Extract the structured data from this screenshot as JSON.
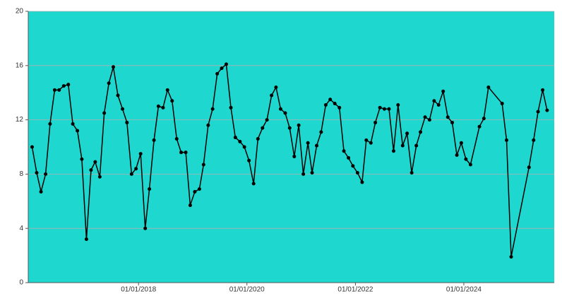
{
  "chart_data": {
    "type": "line",
    "x": [
      "2016-01-15",
      "2016-02-15",
      "2016-03-15",
      "2016-04-15",
      "2016-05-15",
      "2016-06-15",
      "2016-07-15",
      "2016-08-15",
      "2016-09-15",
      "2016-10-15",
      "2016-11-15",
      "2016-12-15",
      "2017-01-15",
      "2017-02-15",
      "2017-03-15",
      "2017-04-15",
      "2017-05-15",
      "2017-06-15",
      "2017-07-15",
      "2017-08-15",
      "2017-09-15",
      "2017-10-15",
      "2017-11-15",
      "2017-12-15",
      "2018-01-15",
      "2018-02-15",
      "2018-03-15",
      "2018-04-15",
      "2018-05-15",
      "2018-06-15",
      "2018-07-15",
      "2018-08-15",
      "2018-09-15",
      "2018-10-15",
      "2018-11-15",
      "2018-12-15",
      "2019-01-15",
      "2019-02-15",
      "2019-03-15",
      "2019-04-15",
      "2019-05-15",
      "2019-06-15",
      "2019-07-15",
      "2019-08-15",
      "2019-09-15",
      "2019-10-15",
      "2019-11-15",
      "2019-12-15",
      "2020-01-15",
      "2020-02-15",
      "2020-03-15",
      "2020-04-15",
      "2020-05-15",
      "2020-06-15",
      "2020-07-15",
      "2020-08-15",
      "2020-09-15",
      "2020-10-15",
      "2020-11-15",
      "2020-12-15",
      "2021-01-15",
      "2021-02-15",
      "2021-03-15",
      "2021-04-15",
      "2021-05-15",
      "2021-06-15",
      "2021-07-15",
      "2021-08-15",
      "2021-09-15",
      "2021-10-15",
      "2021-11-15",
      "2021-12-15",
      "2022-01-15",
      "2022-02-15",
      "2022-03-15",
      "2022-04-15",
      "2022-05-15",
      "2022-06-15",
      "2022-07-15",
      "2022-08-15",
      "2022-09-15",
      "2022-10-15",
      "2022-11-15",
      "2022-12-15",
      "2023-01-15",
      "2023-02-15",
      "2023-03-15",
      "2023-04-15",
      "2023-05-15",
      "2023-06-15",
      "2023-07-15",
      "2023-08-15",
      "2023-09-15",
      "2023-10-15",
      "2023-11-15",
      "2023-12-15",
      "2024-01-15",
      "2024-02-15",
      "2024-04-15",
      "2024-05-15",
      "2024-06-15",
      "2024-09-15",
      "2024-10-15",
      "2024-11-15",
      "2025-03-15",
      "2025-04-15",
      "2025-05-15",
      "2025-06-15",
      "2025-07-15"
    ],
    "series": [
      {
        "color": "#000000",
        "values": [
          10.0,
          8.1,
          6.7,
          8.0,
          11.7,
          14.2,
          14.2,
          14.5,
          14.6,
          11.7,
          11.2,
          9.1,
          3.2,
          8.3,
          8.9,
          7.8,
          12.5,
          14.7,
          15.9,
          13.8,
          12.8,
          11.8,
          8.0,
          8.4,
          9.5,
          4.0,
          6.9,
          10.5,
          13.0,
          12.9,
          14.2,
          13.4,
          10.6,
          9.6,
          9.6,
          5.7,
          6.7,
          6.9,
          8.7,
          11.6,
          12.8,
          15.4,
          15.8,
          16.1,
          12.9,
          10.7,
          10.4,
          10.0,
          9.0,
          7.3,
          10.6,
          11.4,
          12.0,
          13.8,
          14.4,
          12.8,
          12.5,
          11.4,
          9.3,
          11.6,
          8.0,
          10.3,
          8.1,
          10.1,
          11.1,
          13.1,
          13.5,
          13.2,
          12.9,
          9.7,
          9.2,
          8.6,
          8.1,
          7.4,
          10.5,
          10.3,
          11.8,
          12.9,
          12.8,
          12.8,
          9.7,
          13.1,
          10.1,
          11.0,
          8.1,
          10.1,
          11.1,
          12.2,
          12.0,
          13.4,
          13.1,
          14.1,
          12.2,
          11.8,
          9.4,
          10.3,
          9.1,
          8.7,
          11.5,
          12.1,
          14.4,
          13.2,
          10.5,
          1.9,
          8.5,
          10.5,
          12.6,
          14.2,
          12.7
        ]
      }
    ],
    "xlim": [
      "2015-12-20",
      "2025-09-01"
    ],
    "xticks": [
      {
        "value": "2018-01-01",
        "label": "01/01/2018"
      },
      {
        "value": "2020-01-01",
        "label": "01/01/2020"
      },
      {
        "value": "2022-01-01",
        "label": "01/01/2022"
      },
      {
        "value": "2024-01-01",
        "label": "01/01/2024"
      }
    ],
    "ylim": [
      0,
      20
    ],
    "yticks": [
      0,
      4,
      8,
      12,
      16,
      20
    ],
    "grid": true,
    "background": "#1ed8cf"
  }
}
